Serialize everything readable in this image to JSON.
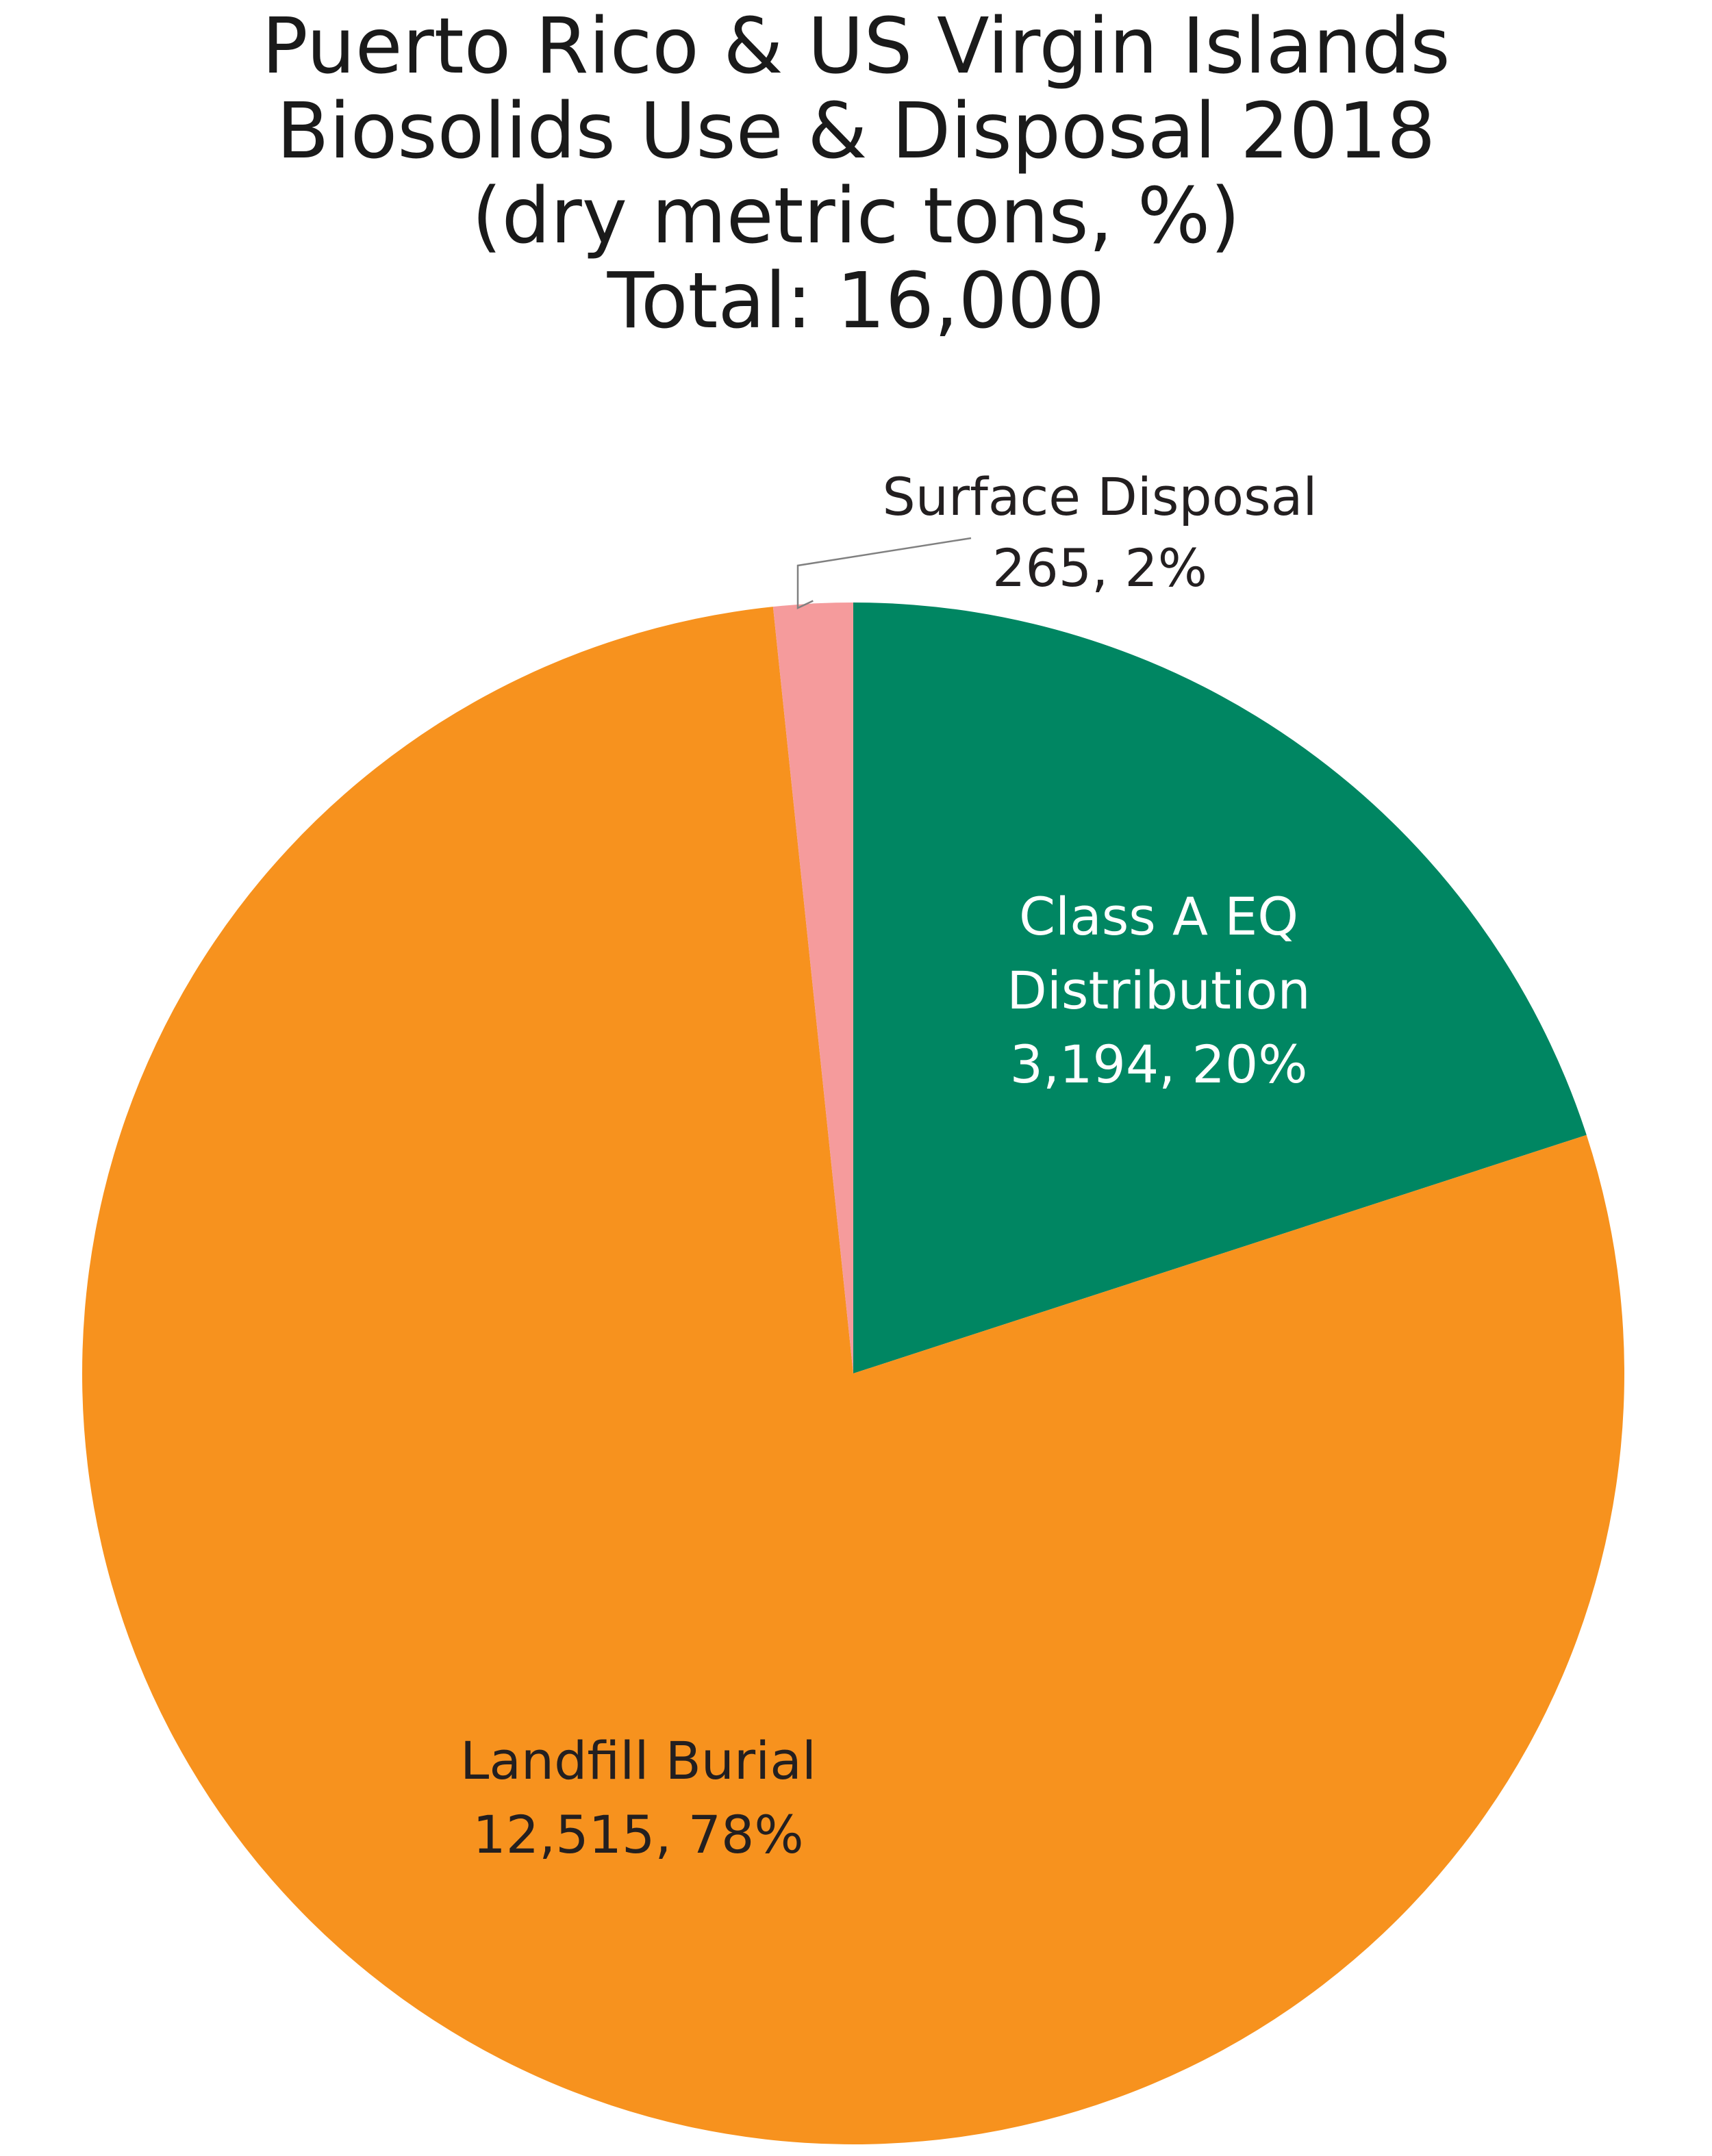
{
  "chart_data": {
    "type": "pie",
    "title": [
      "Puerto Rico & US Virgin Islands",
      "Biosolids Use & Disposal 2018",
      "(dry metric tons, %)",
      "Total: 16,000"
    ],
    "slices": [
      {
        "name": "Class A EQ Distribution",
        "value": 3194,
        "percent": 20,
        "color": "#008662",
        "label_lines": [
          "Class A EQ",
          "Distribution",
          "3,194, 20%"
        ],
        "label_color": "#ffffff"
      },
      {
        "name": "Landfill Burial",
        "value": 12515,
        "percent": 78,
        "color": "#f7921e",
        "label_lines": [
          "Landfill Burial",
          "12,515, 78%"
        ],
        "label_color": "#231f20"
      },
      {
        "name": "Surface Disposal",
        "value": 265,
        "percent": 2,
        "color": "#f59b9c",
        "label_lines": [
          "Surface Disposal",
          "265, 2%"
        ],
        "label_color": "#231f20"
      }
    ],
    "legend": "none",
    "start_angle": "12 o'clock",
    "direction": "clockwise"
  }
}
